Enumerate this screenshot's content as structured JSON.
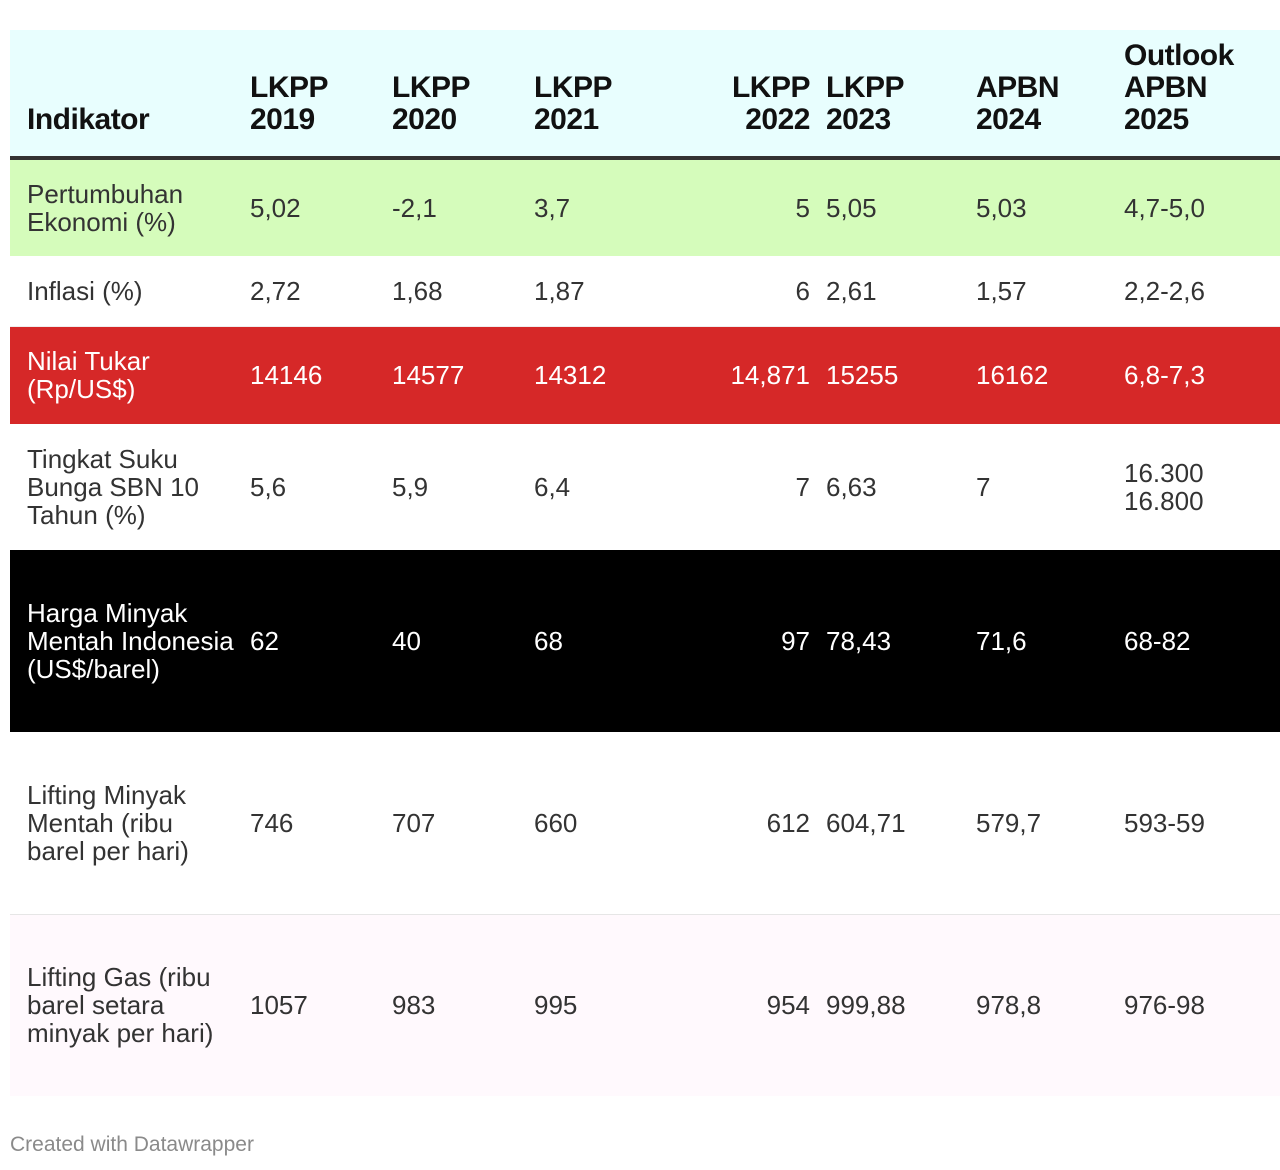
{
  "chart_data": {
    "type": "table",
    "columns": [
      "Indikator",
      "LKPP\n2019",
      "LKPP\n2020",
      "LKPP\n2021",
      "LKPP\n2022",
      "LKPP\n2023",
      "APBN\n2024",
      "Outlook\nAPBN\n2025"
    ],
    "rows": [
      {
        "indicator": "Pertumbuhan Ekonomi (%)",
        "values": [
          "5,02",
          "-2,1",
          "3,7",
          "5",
          "5,05",
          "5,03",
          "4,7-5,0"
        ]
      },
      {
        "indicator": "Inflasi (%)",
        "values": [
          "2,72",
          "1,68",
          "1,87",
          "6",
          "2,61",
          "1,57",
          "2,2-2,6"
        ]
      },
      {
        "indicator": "Nilai Tukar (Rp/US$)",
        "values": [
          "14146",
          "14577",
          "14312",
          "14,871",
          "15255",
          "16162",
          "6,8-7,3"
        ]
      },
      {
        "indicator": "Tingkat Suku Bunga SBN 10 Tahun (%)",
        "values": [
          "5,6",
          "5,9",
          "6,4",
          "7",
          "6,63",
          "7",
          "16.300\n16.800"
        ]
      },
      {
        "indicator": "Harga Minyak Mentah Indonesia (US$/barel)",
        "values": [
          "62",
          "40",
          "68",
          "97",
          "78,43",
          "71,6",
          "68-82"
        ]
      },
      {
        "indicator": "Lifting Minyak Mentah (ribu barel per hari)",
        "values": [
          "746",
          "707",
          "660",
          "612",
          "604,71",
          "579,7",
          "593-59"
        ]
      },
      {
        "indicator": "Lifting Gas (ribu barel setara minyak per hari)",
        "values": [
          "1057",
          "983",
          "995",
          "954",
          "999,88",
          "978,8",
          "976-98"
        ]
      }
    ],
    "row_colors": [
      "#d5fcbb",
      "#ffffff",
      "#d62828",
      "#ffffff",
      "#000000",
      "#ffffff",
      "#fff9fd"
    ],
    "header_color": "#e8fefe"
  },
  "footer": {
    "credit": "Created with Datawrapper"
  }
}
